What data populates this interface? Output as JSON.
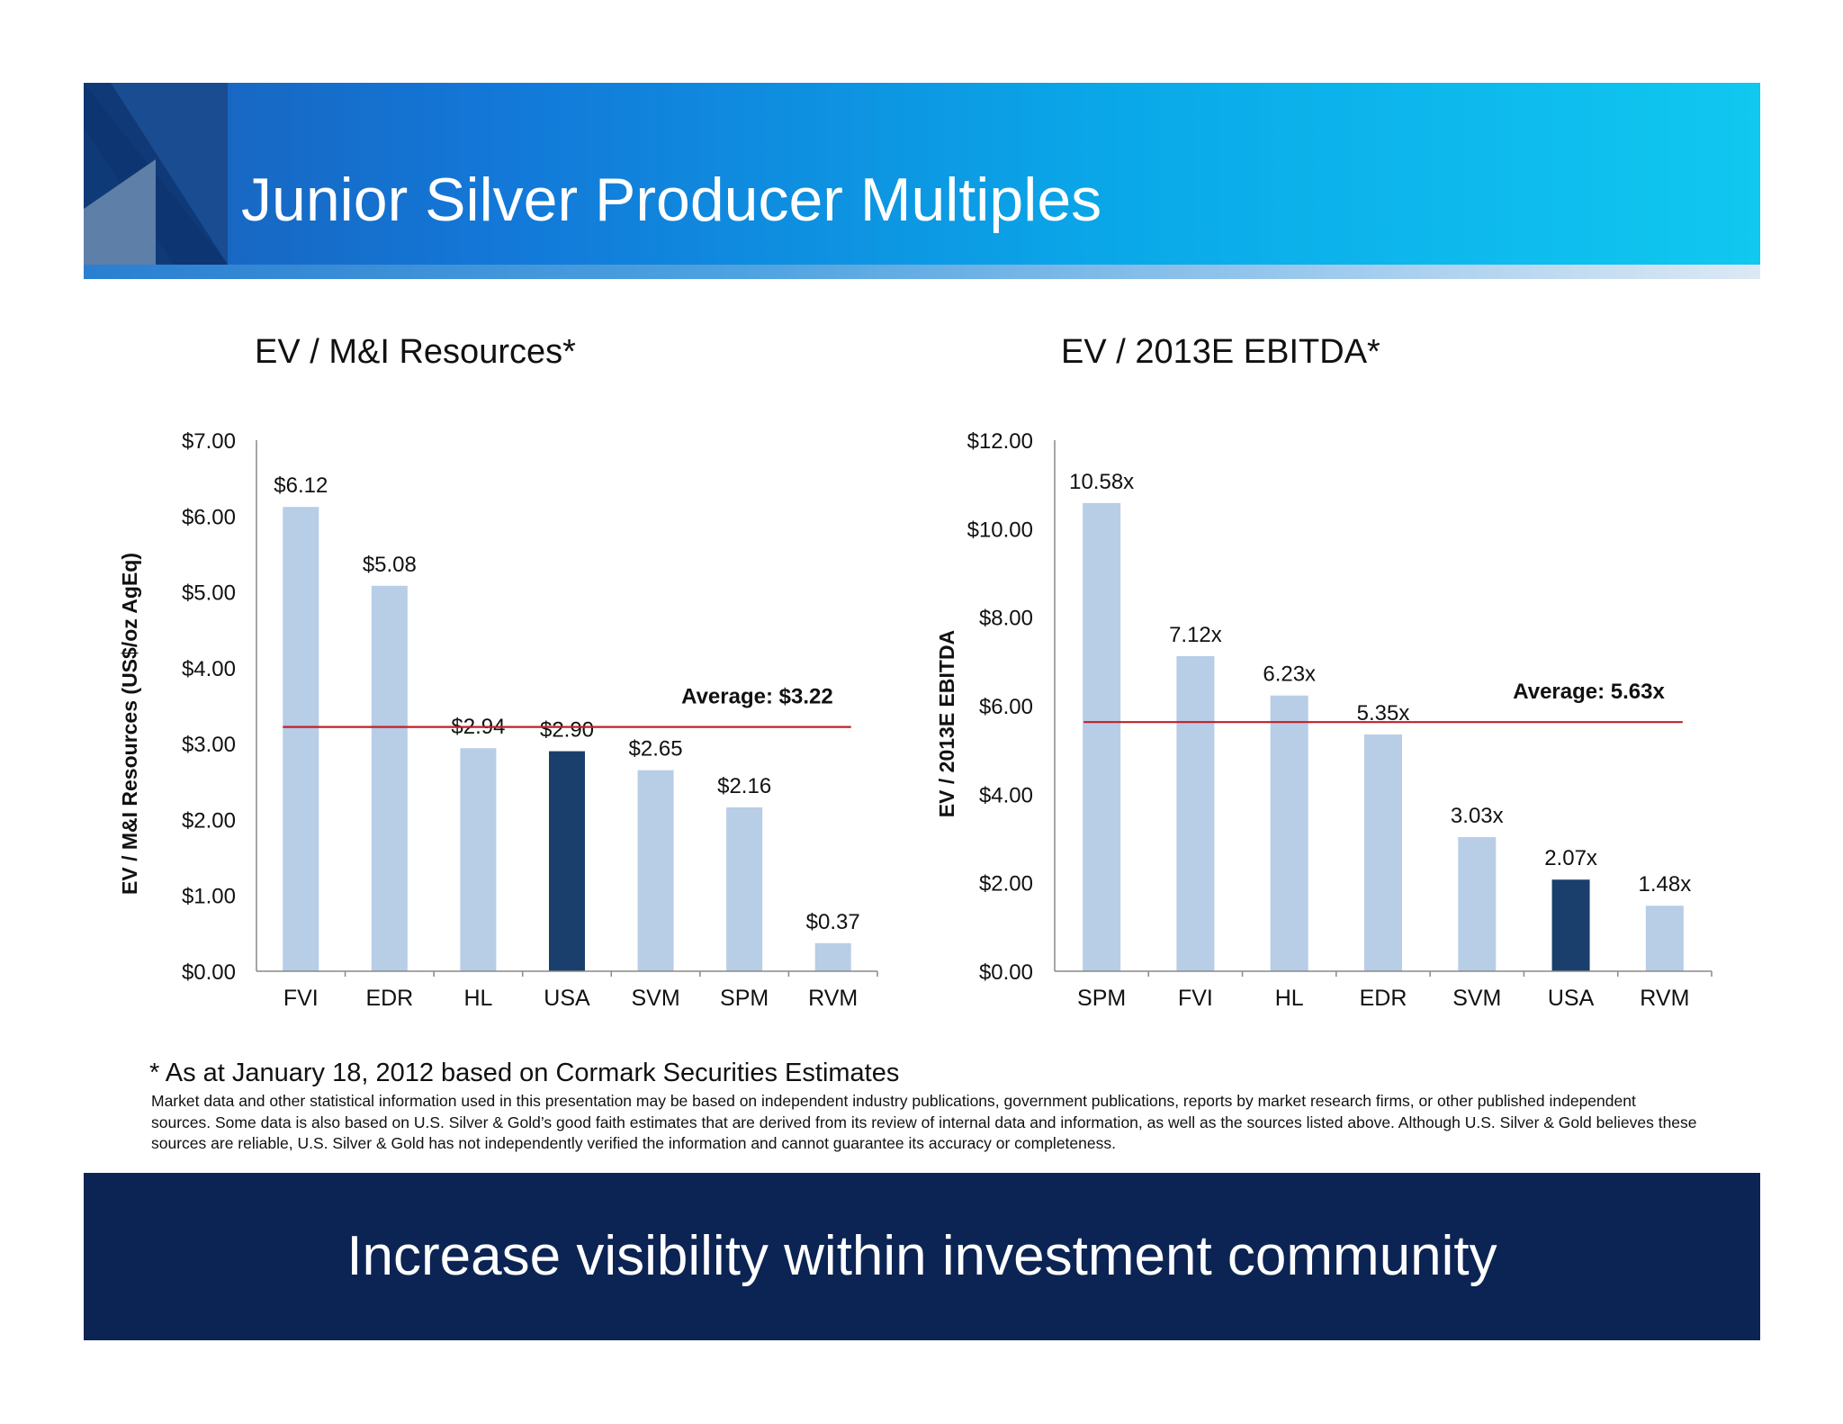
{
  "slide": {
    "title": "Junior Silver Producer Multiples",
    "footnote": "* As at January 18, 2012 based on Cormark Securities Estimates",
    "disclaimer": "Market data and other statistical information used in this presentation may be based on independent industry publications, government publications, reports by market research firms, or other published independent sources. Some data is also based on U.S. Silver & Gold’s good faith estimates that are derived from its review of internal data and information, as well as the sources listed above.   Although U.S. Silver & Gold believes these sources are reliable, U.S. Silver & Gold has not independently verified the information and cannot guarantee its  accuracy or completeness.",
    "tagline": "Increase visibility within investment community"
  },
  "colors": {
    "bar": "#b8cde6",
    "highlight_bar": "#1b3f6c",
    "average_line": "#c0202a",
    "bottom_band": "#0b2454"
  },
  "chart_data": [
    {
      "type": "bar",
      "title": "EV / M&I Resources*",
      "ylabel": "EV / M&I Resources (US$/oz AgEq)",
      "xlabel": "",
      "categories": [
        "FVI",
        "EDR",
        "HL",
        "USA",
        "SVM",
        "SPM",
        "RVM"
      ],
      "values": [
        6.12,
        5.08,
        2.94,
        2.9,
        2.65,
        2.16,
        0.37
      ],
      "data_labels": [
        "$6.12",
        "$5.08",
        "$2.94",
        "$2.90",
        "$2.65",
        "$2.16",
        "$0.37"
      ],
      "highlight": "USA",
      "ylim": [
        0,
        7
      ],
      "yticks": [
        0,
        1,
        2,
        3,
        4,
        5,
        6,
        7
      ],
      "ytick_labels": [
        "$0.00",
        "$1.00",
        "$2.00",
        "$3.00",
        "$4.00",
        "$5.00",
        "$6.00",
        "$7.00"
      ],
      "average": 3.22,
      "average_label": "Average: $3.22",
      "grid": false,
      "legend": "none"
    },
    {
      "type": "bar",
      "title": "EV / 2013E EBITDA*",
      "ylabel": "EV / 2013E EBITDA",
      "xlabel": "",
      "categories": [
        "SPM",
        "FVI",
        "HL",
        "EDR",
        "SVM",
        "USA",
        "RVM"
      ],
      "values": [
        10.58,
        7.12,
        6.23,
        5.35,
        3.03,
        2.07,
        1.48
      ],
      "data_labels": [
        "10.58x",
        "7.12x",
        "6.23x",
        "5.35x",
        "3.03x",
        "2.07x",
        "1.48x"
      ],
      "highlight": "USA",
      "ylim": [
        0,
        12
      ],
      "yticks": [
        0,
        2,
        4,
        6,
        8,
        10,
        12
      ],
      "ytick_labels": [
        "$0.00",
        "$2.00",
        "$4.00",
        "$6.00",
        "$8.00",
        "$10.00",
        "$12.00"
      ],
      "average": 5.63,
      "average_label": "Average: 5.63x",
      "grid": false,
      "legend": "none"
    }
  ]
}
